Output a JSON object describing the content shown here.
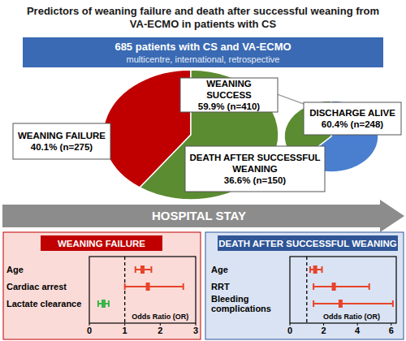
{
  "header": {
    "title": "Predictors of weaning failure and death after successful weaning from VA-ECMO in patients with CS"
  },
  "cohort": {
    "title": "685 patients with CS and VA-ECMO",
    "subtitle": "multicentre, international, retrospective"
  },
  "timeline": {
    "label": "HOSPITAL STAY"
  },
  "chart_data": [
    {
      "type": "pie",
      "categories": [
        "WEANING FAILURE",
        "WEANING SUCCESS"
      ],
      "values": [
        40.1,
        59.9
      ],
      "value_labels": [
        "40.1% (n=275)",
        "59.9% (n=410)"
      ],
      "colors": [
        "#c00000",
        "#5b8c32"
      ],
      "data_labels": true
    },
    {
      "type": "pie",
      "categories": [
        "DEATH AFTER SUCCESSFUL WEANING",
        "DISCHARGE ALIVE"
      ],
      "values": [
        36.6,
        60.4
      ],
      "value_labels": [
        "36.6% (n=150)",
        "60.4% (n=248)"
      ],
      "colors": [
        "#5b8c32",
        "#4a7fd0"
      ],
      "data_labels": true
    },
    {
      "type": "forest",
      "title": "WEANING FAILURE",
      "categories": [
        "Age",
        "Cardiac arrest",
        "Lactate clearance"
      ],
      "values": [
        1.5,
        1.65,
        0.4
      ],
      "ci_low": [
        1.3,
        1.0,
        0.25
      ],
      "ci_high": [
        1.75,
        2.65,
        0.55
      ],
      "colors": [
        "#e8432a",
        "#e8432a",
        "#3ab54a"
      ],
      "xlabel": "Odds Ratio (OR)",
      "reference": 1,
      "xlim": [
        0,
        3
      ],
      "xticks": [
        0,
        1,
        2,
        3
      ]
    },
    {
      "type": "forest",
      "title": "DEATH AFTER SUCCESSFUL WEANING",
      "categories": [
        "Age",
        "RRT",
        "Bleeding complications"
      ],
      "values": [
        1.5,
        2.6,
        3.0
      ],
      "ci_low": [
        1.2,
        1.4,
        1.4
      ],
      "ci_high": [
        1.9,
        4.7,
        6.1
      ],
      "colors": [
        "#e8432a",
        "#e8432a",
        "#e8432a"
      ],
      "xlabel": "Odds Ratio (OR)",
      "reference": 1,
      "xlim": [
        0,
        6.3
      ],
      "xticks": [
        0,
        2,
        4,
        6
      ]
    }
  ]
}
